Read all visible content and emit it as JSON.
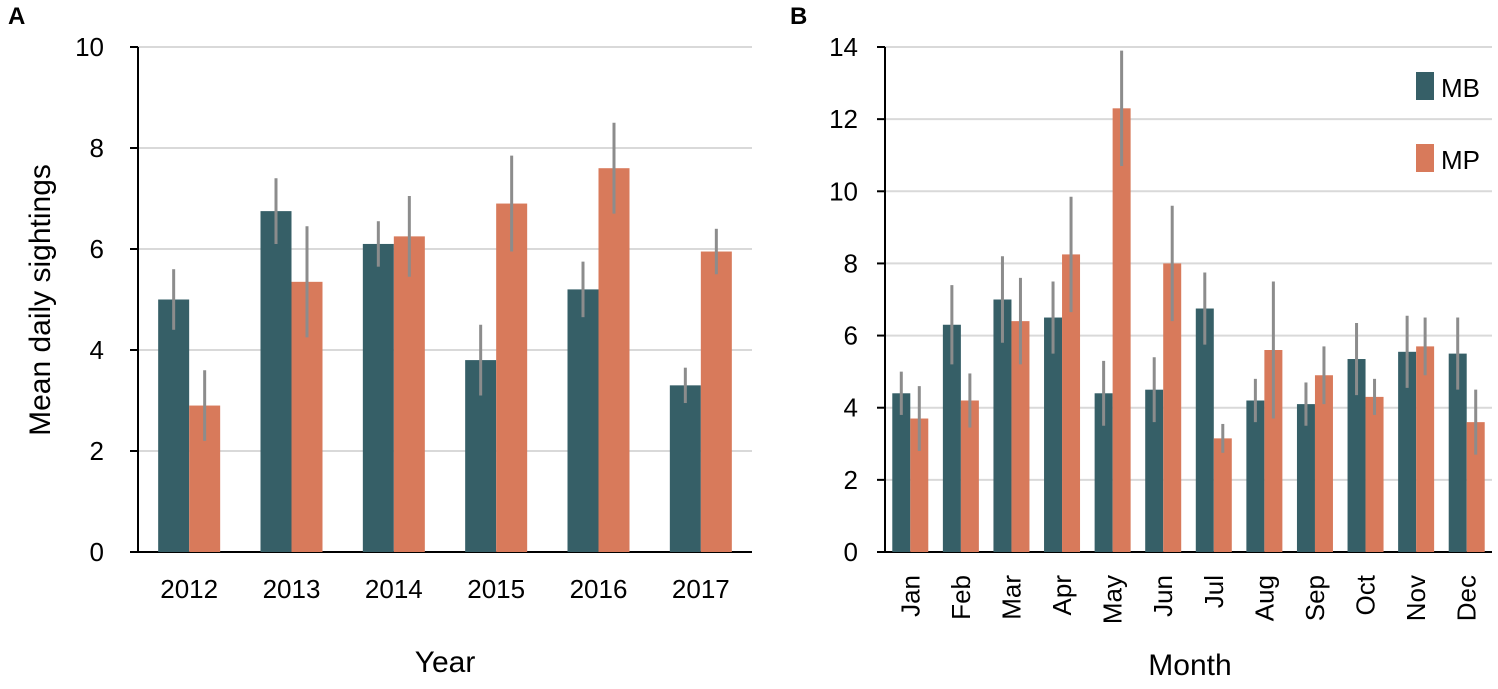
{
  "colors": {
    "MB": "#365f67",
    "MP": "#d87a5b",
    "error": "#8c8c8c"
  },
  "chart_data": [
    {
      "panel": "A",
      "type": "bar",
      "xlabel": "Year",
      "ylabel": "Mean daily sightings",
      "ylim": [
        0,
        10
      ],
      "yticks": [
        "0",
        "2",
        "4",
        "6",
        "8",
        "10"
      ],
      "grid": true,
      "categories": [
        "2012",
        "2013",
        "2014",
        "2015",
        "2016",
        "2017"
      ],
      "series": [
        {
          "name": "MB",
          "values": [
            5.0,
            6.75,
            6.1,
            3.8,
            5.2,
            3.3
          ],
          "err": [
            0.6,
            0.65,
            0.45,
            0.7,
            0.55,
            0.35
          ]
        },
        {
          "name": "MP",
          "values": [
            2.9,
            5.35,
            6.25,
            6.9,
            7.6,
            5.95
          ],
          "err": [
            0.7,
            1.1,
            0.8,
            0.95,
            0.9,
            0.45
          ]
        }
      ]
    },
    {
      "panel": "B",
      "type": "bar",
      "xlabel": "Month",
      "ylabel": "",
      "ylim": [
        0,
        14
      ],
      "yticks": [
        "0",
        "2",
        "4",
        "6",
        "8",
        "10",
        "12",
        "14"
      ],
      "grid": true,
      "legend_position": "top-right",
      "legend": [
        "MB",
        "MP"
      ],
      "categories": [
        "Jan",
        "Feb",
        "Mar",
        "Apr",
        "May",
        "Jun",
        "Jul",
        "Aug",
        "Sep",
        "Oct",
        "Nov",
        "Dec"
      ],
      "series": [
        {
          "name": "MB",
          "values": [
            4.4,
            6.3,
            7.0,
            6.5,
            4.4,
            4.5,
            6.75,
            4.2,
            4.1,
            5.35,
            5.55,
            5.5
          ],
          "err": [
            0.6,
            1.1,
            1.2,
            1.0,
            0.9,
            0.9,
            1.0,
            0.6,
            0.6,
            1.0,
            1.0,
            1.0
          ]
        },
        {
          "name": "MP",
          "values": [
            3.7,
            4.2,
            6.4,
            8.25,
            12.3,
            8.0,
            3.15,
            5.6,
            4.9,
            4.3,
            5.7,
            3.6
          ],
          "err": [
            0.9,
            0.75,
            1.2,
            1.6,
            1.6,
            1.6,
            0.4,
            1.9,
            0.8,
            0.5,
            0.8,
            0.9
          ]
        }
      ]
    }
  ]
}
